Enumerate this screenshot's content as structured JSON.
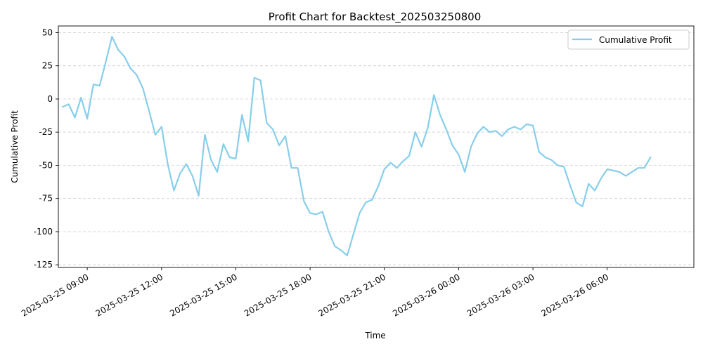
{
  "chart_data": {
    "type": "line",
    "title": "Profit Chart for Backtest_202503250800",
    "xlabel": "Time",
    "ylabel": "Cumulative Profit",
    "grid": "y-dashed",
    "legend_placement": "top-right",
    "line_color": "#87CEEB",
    "ylim": [
      -127,
      55
    ],
    "xlim": [
      "2025-03-25 07:50",
      "2025-03-26 09:30"
    ],
    "xticks": [
      "2025-03-25 09:00",
      "2025-03-25 12:00",
      "2025-03-25 15:00",
      "2025-03-25 18:00",
      "2025-03-25 21:00",
      "2025-03-26 00:00",
      "2025-03-26 03:00",
      "2025-03-26 06:00"
    ],
    "yticks": [
      50,
      25,
      0,
      -25,
      -50,
      -75,
      -100,
      -125
    ],
    "series": [
      {
        "name": "Cumulative Profit",
        "x": [
          "2025-03-25 08:00",
          "2025-03-25 08:15",
          "2025-03-25 08:30",
          "2025-03-25 08:45",
          "2025-03-25 09:00",
          "2025-03-25 09:15",
          "2025-03-25 09:30",
          "2025-03-25 09:45",
          "2025-03-25 10:00",
          "2025-03-25 10:15",
          "2025-03-25 10:30",
          "2025-03-25 10:45",
          "2025-03-25 11:00",
          "2025-03-25 11:15",
          "2025-03-25 11:30",
          "2025-03-25 11:45",
          "2025-03-25 12:00",
          "2025-03-25 12:15",
          "2025-03-25 12:30",
          "2025-03-25 12:45",
          "2025-03-25 13:00",
          "2025-03-25 13:15",
          "2025-03-25 13:30",
          "2025-03-25 13:45",
          "2025-03-25 14:00",
          "2025-03-25 14:15",
          "2025-03-25 14:30",
          "2025-03-25 14:45",
          "2025-03-25 15:00",
          "2025-03-25 15:15",
          "2025-03-25 15:30",
          "2025-03-25 15:45",
          "2025-03-25 16:00",
          "2025-03-25 16:15",
          "2025-03-25 16:30",
          "2025-03-25 16:45",
          "2025-03-25 17:00",
          "2025-03-25 17:15",
          "2025-03-25 17:30",
          "2025-03-25 17:45",
          "2025-03-25 18:00",
          "2025-03-25 18:15",
          "2025-03-25 18:30",
          "2025-03-25 18:45",
          "2025-03-25 19:00",
          "2025-03-25 19:15",
          "2025-03-25 19:30",
          "2025-03-25 19:45",
          "2025-03-25 20:00",
          "2025-03-25 20:15",
          "2025-03-25 20:30",
          "2025-03-25 20:45",
          "2025-03-25 21:00",
          "2025-03-25 21:15",
          "2025-03-25 21:30",
          "2025-03-25 21:45",
          "2025-03-25 22:00",
          "2025-03-25 22:15",
          "2025-03-25 22:30",
          "2025-03-25 22:45",
          "2025-03-25 23:00",
          "2025-03-25 23:15",
          "2025-03-25 23:30",
          "2025-03-25 23:45",
          "2025-03-26 00:00",
          "2025-03-26 00:15",
          "2025-03-26 00:30",
          "2025-03-26 00:45",
          "2025-03-26 01:00",
          "2025-03-26 01:15",
          "2025-03-26 01:30",
          "2025-03-26 01:45",
          "2025-03-26 02:00",
          "2025-03-26 02:15",
          "2025-03-26 02:30",
          "2025-03-26 02:45",
          "2025-03-26 03:00",
          "2025-03-26 03:15",
          "2025-03-26 03:30",
          "2025-03-26 03:45",
          "2025-03-26 04:00",
          "2025-03-26 04:15",
          "2025-03-26 04:30",
          "2025-03-26 04:45",
          "2025-03-26 05:00",
          "2025-03-26 05:15",
          "2025-03-26 05:30",
          "2025-03-26 05:45",
          "2025-03-26 06:00",
          "2025-03-26 06:15",
          "2025-03-26 06:30",
          "2025-03-26 06:45",
          "2025-03-26 07:00",
          "2025-03-26 07:15",
          "2025-03-26 07:30",
          "2025-03-26 07:45"
        ],
        "values": [
          -6,
          -4,
          -14,
          1,
          -15,
          11,
          10,
          28,
          47,
          37,
          32,
          23,
          18,
          8,
          -9,
          -27,
          -21,
          -49,
          -69,
          -56,
          -49,
          -58,
          -73,
          -27,
          -46,
          -55,
          -34,
          -44,
          -45,
          -12,
          -32,
          16,
          14,
          -18,
          -23,
          -35,
          -28,
          -52,
          -52,
          -77,
          -86,
          -87,
          -85,
          -100,
          -111,
          -114,
          -118,
          -102,
          -86,
          -78,
          -76,
          -66,
          -53,
          -48,
          -52,
          -47,
          -43,
          -25,
          -36,
          -22,
          3,
          -12,
          -23,
          -35,
          -42,
          -55,
          -36,
          -26,
          -21,
          -25,
          -24,
          -28,
          -23,
          -21,
          -23,
          -19,
          -20,
          -40,
          -44,
          -46,
          -50,
          -51,
          -65,
          -78,
          -81,
          -64,
          -69,
          -60,
          -53,
          -54,
          -55,
          -58,
          -55,
          -52,
          -52,
          -44
        ]
      }
    ]
  }
}
